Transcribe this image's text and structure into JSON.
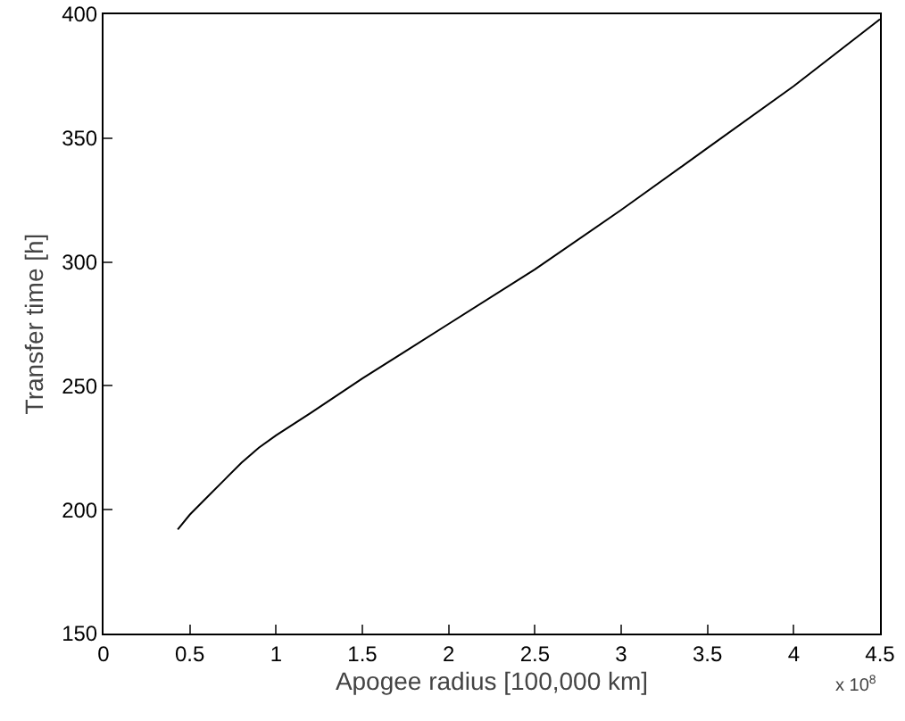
{
  "chart_data": {
    "type": "line",
    "xlabel": "Apogee radius [100,000 km]",
    "ylabel": "Transfer time [h]",
    "annotations": [
      "x 10$^{8}$"
    ],
    "x": [
      0.43,
      0.5,
      0.6,
      0.7,
      0.8,
      0.9,
      1.0,
      1.2,
      1.5,
      1.75,
      2.0,
      2.5,
      3.0,
      3.5,
      4.0,
      4.5
    ],
    "series": [
      {
        "color": "#000000",
        "values": [
          192,
          198,
          205,
          212,
          219,
          225,
          230,
          239,
          253,
          264,
          275,
          297,
          321,
          346,
          371,
          398
        ]
      }
    ],
    "xlim": [
      0,
      4.5
    ],
    "xticks": [
      0,
      0.5,
      1,
      1.5,
      2,
      2.5,
      3,
      3.5,
      4,
      4.5
    ],
    "ylim": [
      150,
      400
    ],
    "yticks": [
      150,
      200,
      250,
      300,
      350,
      400
    ],
    "grid": false,
    "marker": "none",
    "line_style": "solid"
  }
}
